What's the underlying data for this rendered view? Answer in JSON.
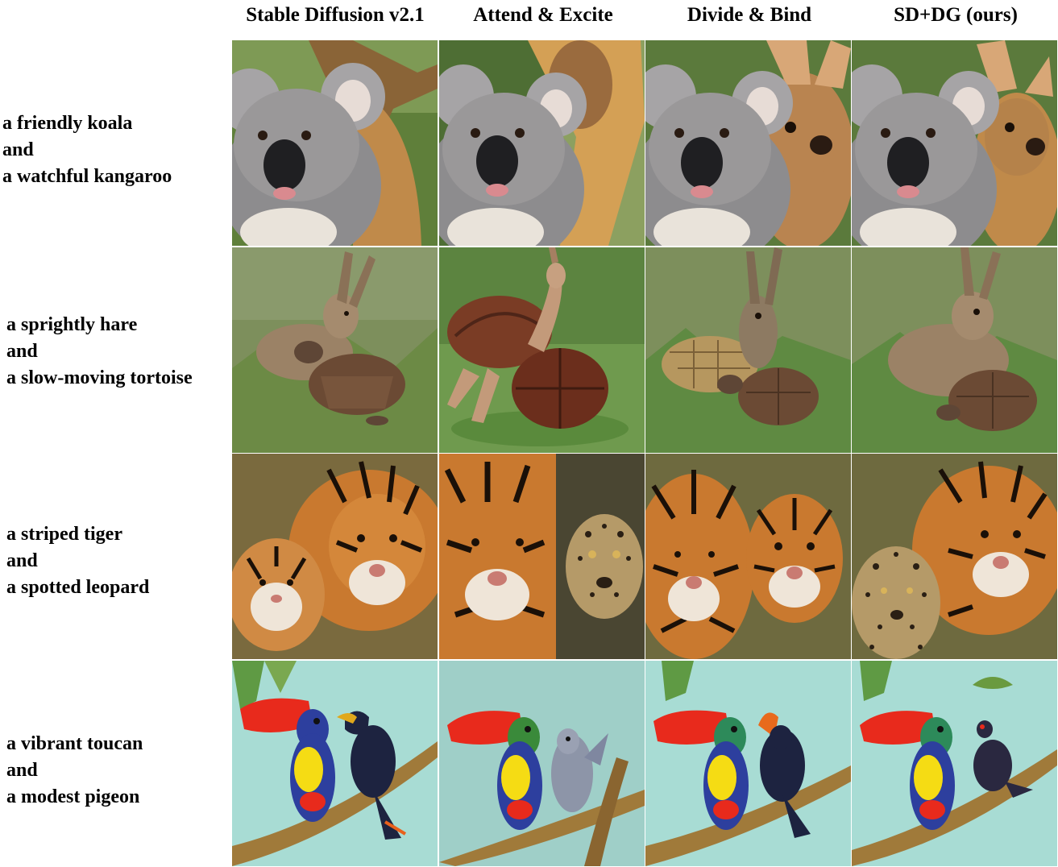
{
  "columns": [
    "Stable Diffusion v2.1",
    "Attend & Excite",
    "Divide & Bind",
    "SD+DG (ours)"
  ],
  "rows": [
    {
      "prompt": [
        "a friendly koala",
        "and",
        "a watchful kangaroo"
      ],
      "scene": "koala-kangaroo"
    },
    {
      "prompt": [
        "a sprightly hare",
        "and",
        "a slow-moving tortoise"
      ],
      "scene": "hare-tortoise"
    },
    {
      "prompt": [
        "a striped tiger",
        "and",
        "a spotted leopard"
      ],
      "scene": "tiger-leopard"
    },
    {
      "prompt": [
        "a vibrant toucan",
        "and",
        "a modest pigeon"
      ],
      "scene": "toucan-pigeon"
    }
  ],
  "colors": {
    "background": "#ffffff",
    "text": "#000000",
    "forest_green": "#5f7f3a",
    "grass_green": "#7d8f5c",
    "koala_grey": "#8d8c8e",
    "kangaroo_tan": "#c08a4a",
    "tortoise_brown": "#6b4a34",
    "hare_brown": "#9b8266",
    "tiger_orange": "#c9792f",
    "leopard_tan": "#b59a68",
    "sky_teal": "#a8dcd4",
    "toucan_red": "#e82a1c",
    "toucan_yellow": "#f5dc14",
    "toucan_blue": "#2d3f9e",
    "branch_brown": "#a07a3a"
  }
}
